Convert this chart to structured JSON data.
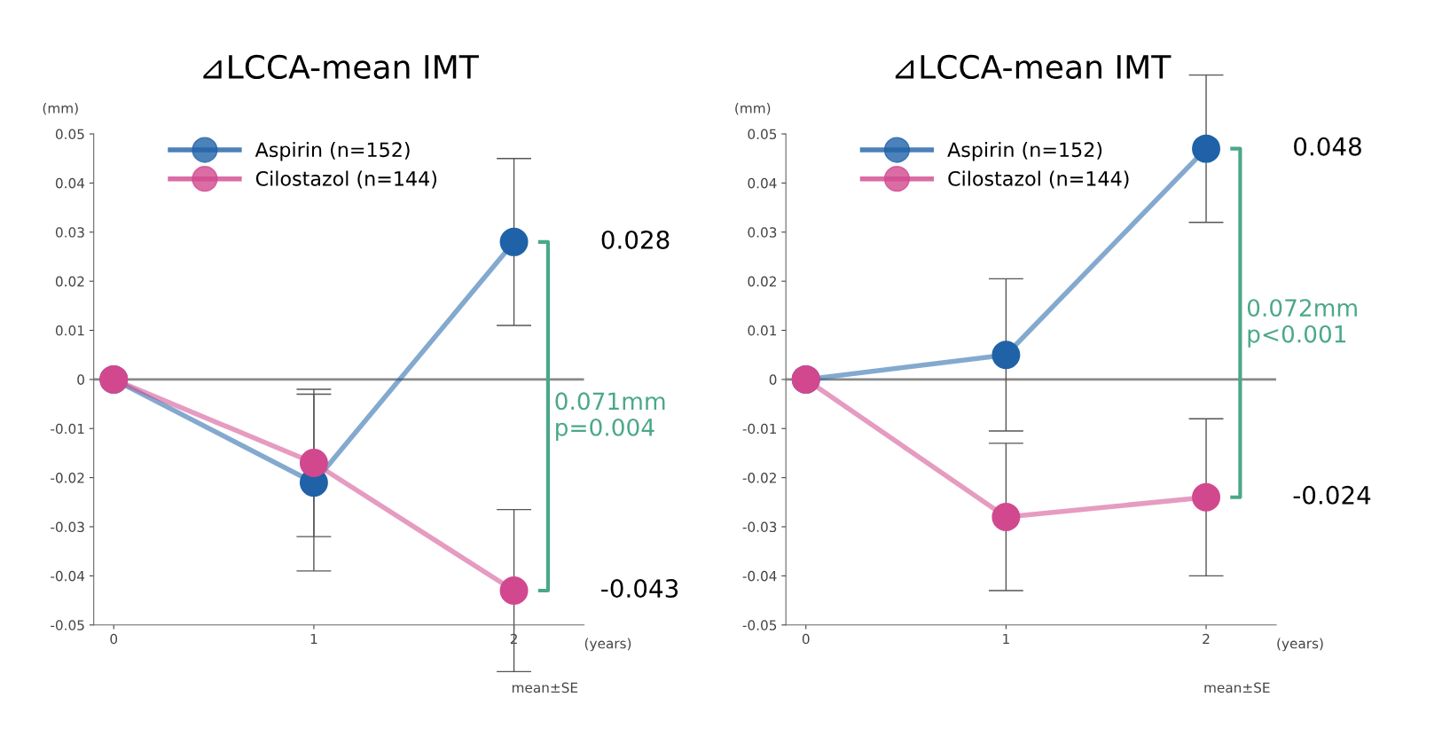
{
  "chart_data": [
    {
      "type": "line",
      "title": "⊿LCCA-mean IMT",
      "x": [
        0,
        1,
        2
      ],
      "xlim": [
        -0.1,
        2.35
      ],
      "xticks": [
        0,
        1,
        2
      ],
      "ylim": [
        -0.05,
        0.05
      ],
      "yticks": [
        -0.05,
        -0.04,
        -0.03,
        -0.02,
        -0.01,
        0,
        0.01,
        0.02,
        0.03,
        0.04,
        0.05
      ],
      "marker": "circle",
      "line_style": "solid",
      "legend": "top left",
      "grid": false,
      "series": [
        {
          "name": "Aspirin (n=152)",
          "color": "#1f62a8",
          "values": [
            0,
            -0.021,
            0.028
          ],
          "errors": [
            null,
            0.018,
            0.017
          ]
        },
        {
          "name": "Cilostazol (n=144)",
          "color": "#d2488e",
          "values": [
            0,
            -0.017,
            -0.043
          ],
          "errors": [
            null,
            0.015,
            0.0165
          ]
        }
      ],
      "ref_lines": [
        {
          "axis": "y",
          "value": 0,
          "label": null,
          "color": "#888888"
        }
      ],
      "annotations": [
        "0.028",
        "-0.043",
        "0.071mm\np=0.004",
        "(mm)",
        "(years)",
        "mean±SE"
      ]
    },
    {
      "type": "line",
      "title": "⊿LCCA-mean IMT",
      "x": [
        0,
        1,
        2
      ],
      "xlim": [
        -0.1,
        2.35
      ],
      "xticks": [
        0,
        1,
        2
      ],
      "ylim": [
        -0.05,
        0.05
      ],
      "yticks": [
        -0.05,
        -0.04,
        -0.03,
        -0.02,
        -0.01,
        0,
        0.01,
        0.02,
        0.03,
        0.04,
        0.05
      ],
      "marker": "circle",
      "line_style": "solid",
      "legend": "top left",
      "grid": false,
      "series": [
        {
          "name": "Aspirin (n=152)",
          "color": "#1f62a8",
          "values": [
            0,
            0.005,
            0.047
          ],
          "errors": [
            null,
            0.0155,
            0.015
          ]
        },
        {
          "name": "Cilostazol (n=144)",
          "color": "#d2488e",
          "values": [
            0,
            -0.028,
            -0.024
          ],
          "errors": [
            null,
            0.015,
            0.016
          ]
        }
      ],
      "ref_lines": [
        {
          "axis": "y",
          "value": 0,
          "label": null,
          "color": "#888888"
        }
      ],
      "annotations": [
        "0.048",
        "-0.024",
        "0.072mm\np<0.001",
        "(mm)",
        "(years)",
        "mean±SE"
      ]
    }
  ]
}
